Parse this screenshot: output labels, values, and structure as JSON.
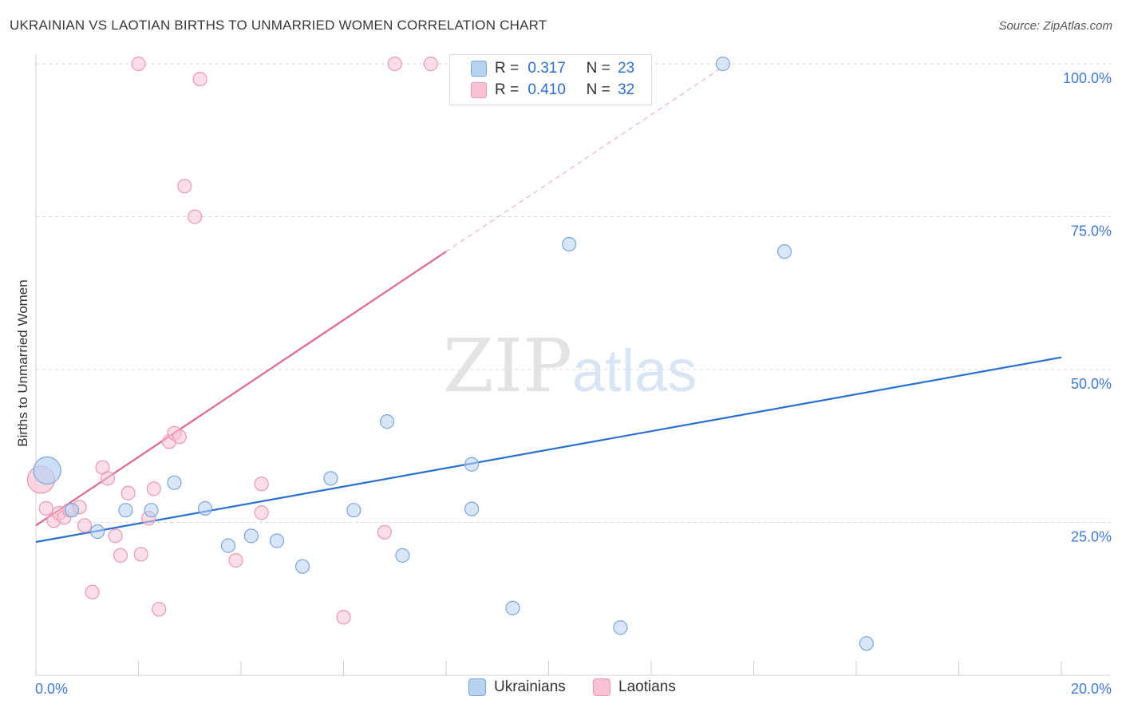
{
  "title": "UKRAINIAN VS LAOTIAN BIRTHS TO UNMARRIED WOMEN CORRELATION CHART",
  "source": "Source: ZipAtlas.com",
  "watermark": {
    "zip": "ZIP",
    "atlas": "atlas"
  },
  "legend": {
    "r_label": "R =",
    "n_label": "N =",
    "rows": [
      {
        "r": "0.317",
        "n": "23"
      },
      {
        "r": "0.410",
        "n": "32"
      }
    ]
  },
  "bottom_legend": [
    "Ukrainians",
    "Laotians"
  ],
  "colors": {
    "ukr_fill": "#b8d2f2",
    "ukr_stroke": "#7aa6e0",
    "ukr_line": "#2a6fd1",
    "lao_fill": "#f7c3d2",
    "lao_stroke": "#ec97b1",
    "lao_line": "#e2678f",
    "axis_label": "#3f7ad6"
  },
  "chart_data": {
    "type": "scatter",
    "title": "UKRAINIAN VS LAOTIAN BIRTHS TO UNMARRIED WOMEN CORRELATION CHART",
    "xlabel": "",
    "ylabel": "Births to Unmarried Women",
    "xlim": [
      0,
      20
    ],
    "ylim": [
      0,
      100
    ],
    "x_tick_labels": [
      "0.0%",
      "20.0%"
    ],
    "y_tick_labels": [
      "25.0%",
      "50.0%",
      "75.0%",
      "100.0%"
    ],
    "y_ticks": [
      25,
      50,
      75,
      100
    ],
    "series": [
      {
        "name": "Ukrainians",
        "r": 0.317,
        "n": 23,
        "points": [
          {
            "x": 0.22,
            "y": 33.5,
            "big": true
          },
          {
            "x": 0.7,
            "y": 27.0
          },
          {
            "x": 1.2,
            "y": 23.5
          },
          {
            "x": 1.75,
            "y": 27.0
          },
          {
            "x": 2.25,
            "y": 27.0
          },
          {
            "x": 2.7,
            "y": 31.5
          },
          {
            "x": 3.3,
            "y": 27.3
          },
          {
            "x": 3.75,
            "y": 21.2
          },
          {
            "x": 4.2,
            "y": 22.8
          },
          {
            "x": 4.7,
            "y": 22.0
          },
          {
            "x": 5.2,
            "y": 17.8
          },
          {
            "x": 5.75,
            "y": 32.2
          },
          {
            "x": 6.2,
            "y": 27.0
          },
          {
            "x": 6.85,
            "y": 41.5
          },
          {
            "x": 7.15,
            "y": 19.6
          },
          {
            "x": 8.5,
            "y": 34.5
          },
          {
            "x": 8.5,
            "y": 27.2
          },
          {
            "x": 9.3,
            "y": 11.0
          },
          {
            "x": 10.4,
            "y": 70.5
          },
          {
            "x": 11.4,
            "y": 7.8
          },
          {
            "x": 13.4,
            "y": 100.0
          },
          {
            "x": 14.6,
            "y": 69.3
          },
          {
            "x": 16.2,
            "y": 5.2
          }
        ],
        "trend": {
          "x": [
            0,
            20
          ],
          "y": [
            21.8,
            52.0
          ]
        }
      },
      {
        "name": "Laotians",
        "r": 0.41,
        "n": 32,
        "points": [
          {
            "x": 0.1,
            "y": 32.0,
            "big": true
          },
          {
            "x": 0.2,
            "y": 27.3
          },
          {
            "x": 0.35,
            "y": 25.3
          },
          {
            "x": 0.45,
            "y": 26.5
          },
          {
            "x": 0.55,
            "y": 25.8
          },
          {
            "x": 0.65,
            "y": 27.0
          },
          {
            "x": 0.85,
            "y": 27.5
          },
          {
            "x": 0.95,
            "y": 24.5
          },
          {
            "x": 1.1,
            "y": 13.6
          },
          {
            "x": 1.3,
            "y": 34.0
          },
          {
            "x": 1.4,
            "y": 32.2
          },
          {
            "x": 1.55,
            "y": 22.8
          },
          {
            "x": 1.65,
            "y": 19.6
          },
          {
            "x": 1.8,
            "y": 29.8
          },
          {
            "x": 2.0,
            "y": 100.0
          },
          {
            "x": 2.05,
            "y": 19.8
          },
          {
            "x": 2.2,
            "y": 25.7
          },
          {
            "x": 2.3,
            "y": 30.5
          },
          {
            "x": 2.4,
            "y": 10.8
          },
          {
            "x": 2.6,
            "y": 38.2
          },
          {
            "x": 2.7,
            "y": 39.6
          },
          {
            "x": 2.8,
            "y": 39.0
          },
          {
            "x": 2.9,
            "y": 80.0
          },
          {
            "x": 3.1,
            "y": 75.0
          },
          {
            "x": 3.2,
            "y": 97.5
          },
          {
            "x": 3.9,
            "y": 18.8
          },
          {
            "x": 4.4,
            "y": 26.6
          },
          {
            "x": 4.4,
            "y": 31.3
          },
          {
            "x": 6.0,
            "y": 9.5
          },
          {
            "x": 6.8,
            "y": 23.4
          },
          {
            "x": 7.0,
            "y": 100.0
          },
          {
            "x": 7.7,
            "y": 100.0
          }
        ],
        "trend": {
          "x": [
            0,
            8.0
          ],
          "y": [
            24.5,
            69.3
          ]
        },
        "trend_dashed": {
          "x": [
            8.0,
            13.4
          ],
          "y": [
            69.3,
            99.5
          ]
        }
      }
    ]
  }
}
